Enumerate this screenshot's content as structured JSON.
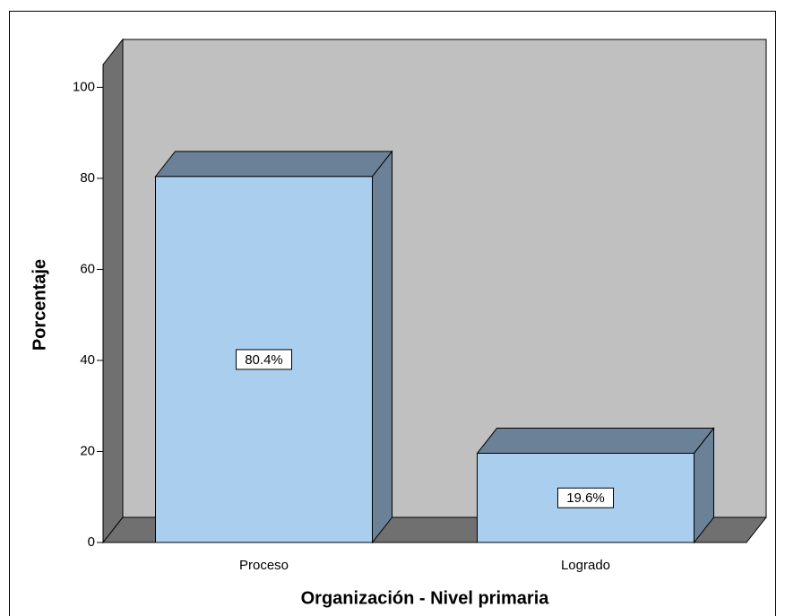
{
  "chart_data": {
    "type": "bar3d",
    "categories": [
      "Proceso",
      "Logrado"
    ],
    "values": [
      80.4,
      19.6
    ],
    "value_labels": [
      "80.4%",
      "19.6%"
    ],
    "color": "#aacfee",
    "ylabel": "Porcentaje",
    "xlabel": "Organización - Nivel primaria",
    "ylim": [
      0,
      105
    ],
    "yticks": [
      0,
      20,
      40,
      60,
      80,
      100
    ]
  }
}
